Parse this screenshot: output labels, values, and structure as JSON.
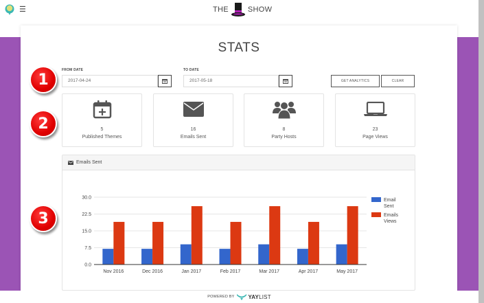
{
  "header": {
    "brand_left": "THE",
    "brand_right": "SHOW",
    "menu_icon": "hamburger-icon",
    "logo_icon": "yaylist-logo-icon",
    "brand_icon": "top-hat-icon"
  },
  "page": {
    "title": "STATS"
  },
  "filters": {
    "from_label": "FROM DATE",
    "from_value": "2017-04-24",
    "to_label": "TO DATE",
    "to_value": "2017-05-18",
    "calendar_icon": "calendar-icon",
    "get_analytics_label": "GET ANALYTICS",
    "clear_label": "CLEAR"
  },
  "stats": [
    {
      "icon": "calendar-plus-icon",
      "value": "5",
      "label": "Published Themes"
    },
    {
      "icon": "envelope-icon",
      "value": "16",
      "label": "Emails Sent"
    },
    {
      "icon": "users-icon",
      "value": "8",
      "label": "Party Hosts"
    },
    {
      "icon": "laptop-icon",
      "value": "23",
      "label": "Page Views"
    }
  ],
  "panel": {
    "title": "Emails Sent",
    "icon": "envelope-icon"
  },
  "annotations": [
    "1",
    "2",
    "3"
  ],
  "footer": {
    "powered_by": "POWERED BY",
    "brand_bold": "YAY",
    "brand_light": "LIST"
  },
  "colors": {
    "purple": "#9b54b5",
    "series_blue": "#3366cc",
    "series_red": "#dc3912",
    "badge_red": "#e00000"
  },
  "chart_data": {
    "type": "bar",
    "title": "Emails Sent",
    "categories": [
      "Nov 2016",
      "Dec 2016",
      "Jan 2017",
      "Feb 2017",
      "Mar 2017",
      "Apr 2017",
      "May 2017"
    ],
    "series": [
      {
        "name": "Email Sent",
        "legend_lines": [
          "Email",
          "Sent"
        ],
        "color": "#3366cc",
        "values": [
          7,
          7,
          9,
          7,
          9,
          7,
          9
        ]
      },
      {
        "name": "Emails Views",
        "legend_lines": [
          "Emails",
          "Views"
        ],
        "color": "#dc3912",
        "values": [
          19,
          19,
          26,
          19,
          26,
          19,
          26
        ]
      }
    ],
    "yticks": [
      "0.0",
      "7.5",
      "15.0",
      "22.5",
      "30.0"
    ],
    "ylim": [
      0,
      30
    ],
    "xlabel": "",
    "ylabel": "",
    "grid": true,
    "legend_position": "right"
  }
}
